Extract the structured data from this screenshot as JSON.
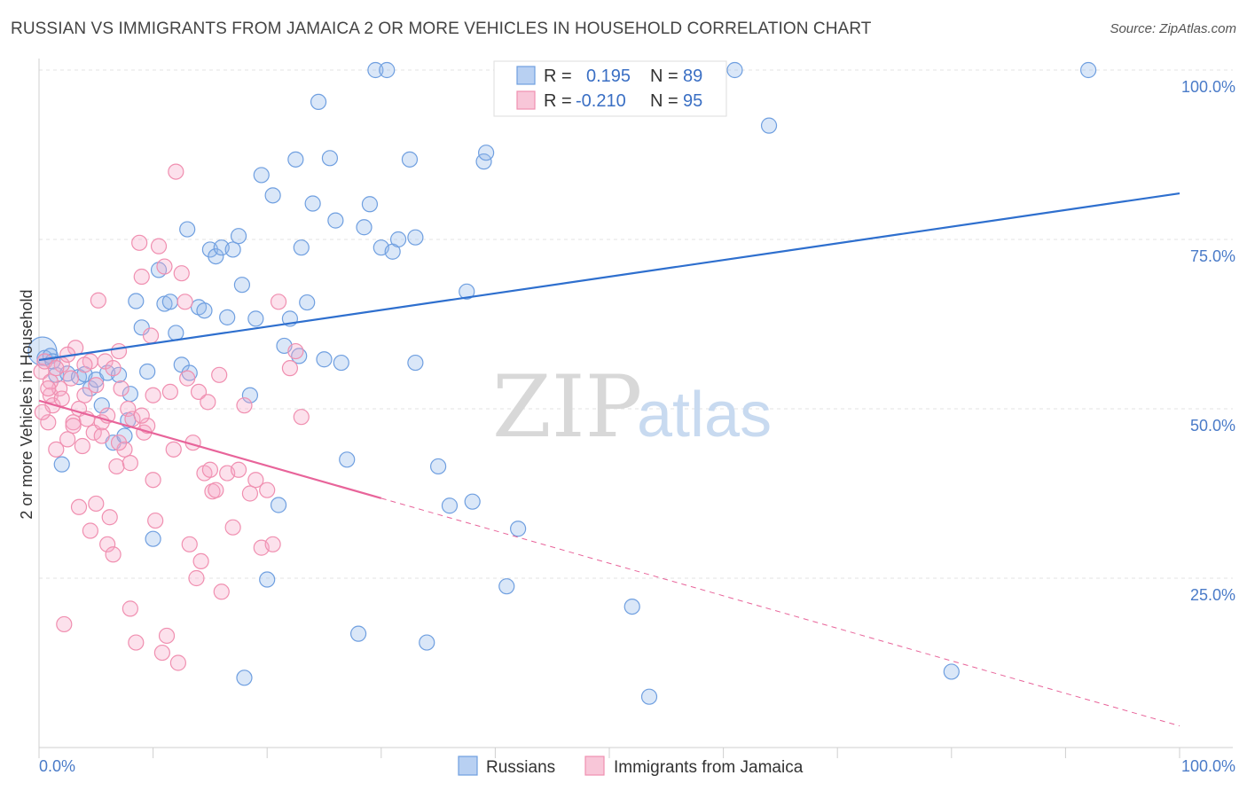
{
  "title": "RUSSIAN VS IMMIGRANTS FROM JAMAICA 2 OR MORE VEHICLES IN HOUSEHOLD CORRELATION CHART",
  "source": "Source: ZipAtlas.com",
  "colors": {
    "blue": "#6f9fe0",
    "blue_line": "#2e6fce",
    "pink": "#f08fb0",
    "pink_line": "#e8649a",
    "axis_label": "#4a7bc8"
  },
  "legend": {
    "r_label": "R =",
    "n_label": "N =",
    "series": [
      {
        "r": "0.195",
        "n": "89"
      },
      {
        "r": "-0.210",
        "n": "95"
      }
    ]
  },
  "watermark": {
    "zip": "ZIP",
    "atlas": "atlas"
  },
  "chart_data": {
    "type": "scatter",
    "title": "RUSSIAN VS IMMIGRANTS FROM JAMAICA 2 OR MORE VEHICLES IN HOUSEHOLD CORRELATION CHART",
    "xlabel": "",
    "ylabel": "2 or more Vehicles in Household",
    "xlim": [
      0,
      100
    ],
    "ylim": [
      0,
      100
    ],
    "x_tick_labels": [
      "0.0%",
      "100.0%"
    ],
    "y_tick_labels": [
      "25.0%",
      "50.0%",
      "75.0%",
      "100.0%"
    ],
    "y_ticks": [
      25,
      50,
      75,
      100
    ],
    "grid": true,
    "legend_position": "top-center",
    "series": [
      {
        "name": "Russians",
        "color": "#6f9fe0",
        "r": 0.195,
        "n": 89,
        "trend": {
          "x": [
            0,
            100
          ],
          "y": [
            57.2,
            81.8
          ],
          "solid_until": 100
        },
        "points": [
          [
            0.3,
            58.5
          ],
          [
            0.5,
            57.5
          ],
          [
            1.0,
            57.8
          ],
          [
            1.5,
            55.0
          ],
          [
            2.0,
            41.8
          ],
          [
            2.5,
            55.2
          ],
          [
            3.5,
            54.7
          ],
          [
            4.0,
            55.1
          ],
          [
            4.5,
            53.0
          ],
          [
            5.0,
            54.3
          ],
          [
            5.5,
            50.5
          ],
          [
            6.0,
            55.3
          ],
          [
            6.5,
            45.0
          ],
          [
            7.0,
            55.0
          ],
          [
            7.5,
            46.0
          ],
          [
            7.8,
            48.3
          ],
          [
            8.0,
            52.2
          ],
          [
            8.5,
            65.9
          ],
          [
            9.0,
            62.0
          ],
          [
            9.5,
            55.5
          ],
          [
            10.0,
            30.8
          ],
          [
            10.5,
            70.5
          ],
          [
            11.0,
            65.5
          ],
          [
            11.5,
            65.8
          ],
          [
            12.0,
            61.2
          ],
          [
            12.5,
            56.5
          ],
          [
            13.0,
            76.5
          ],
          [
            13.2,
            55.3
          ],
          [
            14.0,
            65.0
          ],
          [
            14.5,
            64.5
          ],
          [
            15.0,
            73.5
          ],
          [
            15.5,
            72.5
          ],
          [
            16.0,
            73.8
          ],
          [
            16.5,
            63.5
          ],
          [
            17.0,
            73.5
          ],
          [
            17.5,
            75.5
          ],
          [
            17.8,
            68.3
          ],
          [
            18.0,
            10.3
          ],
          [
            18.5,
            52.0
          ],
          [
            19.0,
            63.3
          ],
          [
            19.5,
            84.5
          ],
          [
            20.0,
            24.8
          ],
          [
            20.5,
            81.5
          ],
          [
            21.0,
            35.8
          ],
          [
            21.5,
            59.3
          ],
          [
            22.0,
            63.3
          ],
          [
            22.5,
            86.8
          ],
          [
            22.8,
            57.8
          ],
          [
            23.0,
            73.8
          ],
          [
            23.5,
            65.7
          ],
          [
            24.0,
            80.3
          ],
          [
            24.5,
            95.3
          ],
          [
            25.0,
            57.3
          ],
          [
            25.5,
            87.0
          ],
          [
            26.0,
            77.8
          ],
          [
            26.5,
            56.8
          ],
          [
            27.0,
            42.5
          ],
          [
            28.0,
            16.8
          ],
          [
            28.5,
            76.8
          ],
          [
            29.0,
            80.2
          ],
          [
            29.5,
            100.0
          ],
          [
            30.0,
            73.8
          ],
          [
            30.5,
            100.0
          ],
          [
            31.0,
            73.2
          ],
          [
            31.5,
            75.0
          ],
          [
            32.5,
            86.8
          ],
          [
            33.0,
            75.3
          ],
          [
            33.0,
            56.8
          ],
          [
            34.0,
            15.5
          ],
          [
            35.0,
            41.5
          ],
          [
            36.0,
            35.7
          ],
          [
            37.5,
            67.3
          ],
          [
            38.0,
            36.3
          ],
          [
            39.0,
            86.5
          ],
          [
            39.2,
            87.8
          ],
          [
            41.0,
            23.8
          ],
          [
            42.0,
            32.3
          ],
          [
            47.0,
            100.0
          ],
          [
            50.0,
            100.0
          ],
          [
            50.5,
            100.0
          ],
          [
            52.0,
            20.8
          ],
          [
            52.5,
            100.0
          ],
          [
            53.0,
            100.0
          ],
          [
            53.5,
            7.5
          ],
          [
            61.0,
            100.0
          ],
          [
            64.0,
            91.8
          ],
          [
            80.0,
            11.2
          ],
          [
            92.0,
            100.0
          ],
          [
            1.2,
            57.0
          ]
        ]
      },
      {
        "name": "Immigrants from Jamaica",
        "color": "#f08fb0",
        "r": -0.21,
        "n": 95,
        "trend": {
          "x": [
            0,
            100
          ],
          "y": [
            51.2,
            3.2
          ],
          "solid_until": 30
        },
        "points": [
          [
            0.2,
            55.5
          ],
          [
            0.5,
            57.0
          ],
          [
            0.8,
            48.0
          ],
          [
            1.0,
            52.0
          ],
          [
            1.2,
            50.5
          ],
          [
            1.5,
            44.0
          ],
          [
            1.8,
            53.0
          ],
          [
            2.0,
            51.5
          ],
          [
            2.2,
            18.2
          ],
          [
            2.5,
            45.5
          ],
          [
            2.8,
            54.5
          ],
          [
            3.0,
            48.0
          ],
          [
            3.2,
            59.0
          ],
          [
            3.5,
            50.0
          ],
          [
            3.8,
            44.5
          ],
          [
            4.0,
            52.0
          ],
          [
            4.2,
            48.5
          ],
          [
            4.5,
            57.0
          ],
          [
            4.8,
            46.5
          ],
          [
            5.0,
            36.0
          ],
          [
            5.2,
            66.0
          ],
          [
            5.5,
            48.0
          ],
          [
            5.8,
            57.0
          ],
          [
            6.0,
            30.0
          ],
          [
            6.2,
            34.0
          ],
          [
            6.5,
            56.0
          ],
          [
            6.8,
            41.5
          ],
          [
            7.0,
            58.5
          ],
          [
            7.2,
            53.0
          ],
          [
            7.5,
            44.0
          ],
          [
            7.8,
            50.0
          ],
          [
            8.0,
            20.5
          ],
          [
            8.2,
            48.5
          ],
          [
            8.5,
            15.5
          ],
          [
            8.8,
            74.5
          ],
          [
            9.0,
            69.5
          ],
          [
            9.2,
            46.5
          ],
          [
            9.5,
            47.5
          ],
          [
            9.8,
            60.8
          ],
          [
            10.0,
            39.5
          ],
          [
            10.2,
            33.5
          ],
          [
            10.5,
            74.0
          ],
          [
            10.8,
            14.0
          ],
          [
            11.0,
            71.0
          ],
          [
            11.2,
            16.5
          ],
          [
            11.5,
            52.5
          ],
          [
            11.8,
            44.0
          ],
          [
            12.0,
            85.0
          ],
          [
            12.2,
            12.5
          ],
          [
            12.5,
            70.0
          ],
          [
            12.8,
            65.8
          ],
          [
            13.0,
            54.5
          ],
          [
            13.2,
            30.0
          ],
          [
            13.5,
            45.0
          ],
          [
            13.8,
            25.0
          ],
          [
            14.0,
            52.5
          ],
          [
            14.2,
            27.5
          ],
          [
            14.5,
            40.5
          ],
          [
            14.8,
            51.0
          ],
          [
            15.0,
            41.0
          ],
          [
            15.2,
            37.8
          ],
          [
            15.5,
            38.0
          ],
          [
            15.8,
            55.0
          ],
          [
            16.0,
            23.0
          ],
          [
            16.5,
            40.5
          ],
          [
            17.0,
            32.5
          ],
          [
            17.5,
            41.0
          ],
          [
            18.0,
            50.5
          ],
          [
            18.5,
            37.5
          ],
          [
            19.0,
            39.5
          ],
          [
            19.5,
            29.5
          ],
          [
            20.0,
            38.0
          ],
          [
            20.5,
            30.0
          ],
          [
            21.0,
            65.8
          ],
          [
            22.0,
            56.0
          ],
          [
            22.5,
            58.5
          ],
          [
            23.0,
            48.8
          ],
          [
            0.3,
            49.5
          ],
          [
            1.0,
            54.0
          ],
          [
            2.0,
            56.5
          ],
          [
            3.0,
            47.5
          ],
          [
            4.0,
            56.5
          ],
          [
            5.0,
            53.5
          ],
          [
            6.0,
            49.0
          ],
          [
            7.0,
            45.0
          ],
          [
            8.0,
            42.0
          ],
          [
            9.0,
            49.0
          ],
          [
            10.0,
            52.0
          ],
          [
            3.5,
            35.5
          ],
          [
            4.5,
            32.0
          ],
          [
            6.5,
            28.5
          ],
          [
            2.5,
            58.0
          ],
          [
            1.5,
            56.0
          ],
          [
            0.8,
            53.0
          ],
          [
            5.5,
            46.0
          ]
        ]
      }
    ]
  },
  "bottom_legend": [
    {
      "label": "Russians"
    },
    {
      "label": "Immigrants from Jamaica"
    }
  ]
}
